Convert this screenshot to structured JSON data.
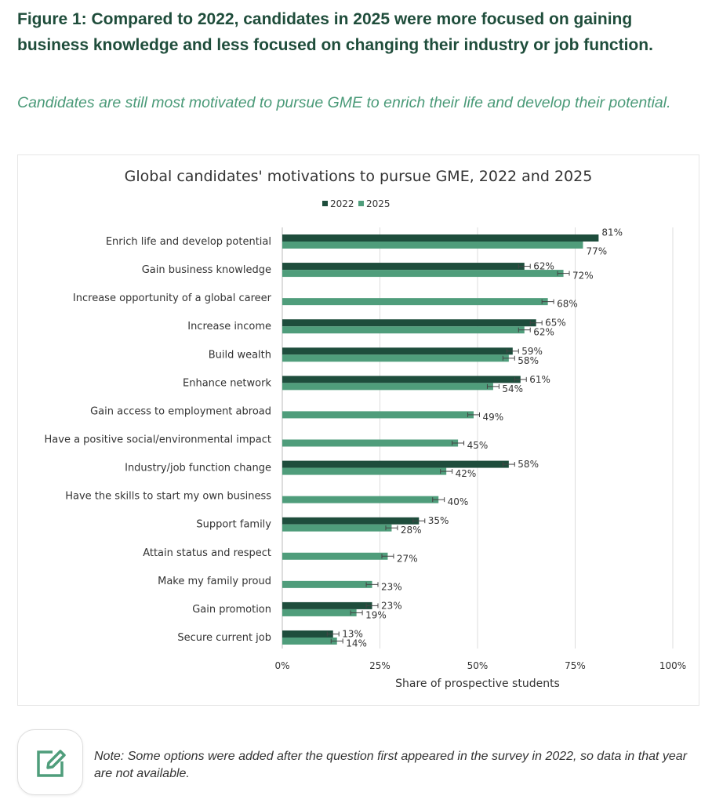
{
  "headline": "Figure 1: Compared to 2022, candidates in 2025 were more focused on gaining business knowledge and less focused on changing their industry or job function.",
  "subheadline": "Candidates are still most motivated to pursue GME to enrich their life and develop their potential.",
  "note": "Note: Some options were added after the question first appeared in the survey in 2022, so data in that year are not available.",
  "note_icon": "edit-note-icon",
  "colors": {
    "series_2022": "#1e4d3c",
    "series_2025": "#4f9d7b",
    "text": "#333333",
    "grid": "#dddddd"
  },
  "chart_data": {
    "type": "bar",
    "orientation": "horizontal",
    "title": "Global candidates' motivations to pursue GME, 2022 and 2025",
    "xlabel": "Share of prospective students",
    "ylabel": "",
    "xlim": [
      0,
      100
    ],
    "xticks": [
      "0%",
      "25%",
      "50%",
      "75%",
      "100%"
    ],
    "grid": true,
    "legend_position": "top",
    "error_bars": true,
    "categories": [
      "Enrich life and develop potential",
      "Gain business knowledge",
      "Increase opportunity of a global career",
      "Increase income",
      "Build wealth",
      "Enhance network",
      "Gain access to employment abroad",
      "Have a positive social/environmental impact",
      "Industry/job function change",
      "Have the skills to start my own business",
      "Support family",
      "Attain status and respect",
      "Make my family proud",
      "Gain promotion",
      "Secure current job"
    ],
    "series": [
      {
        "name": "2022",
        "values": [
          81,
          62,
          null,
          65,
          59,
          61,
          null,
          null,
          58,
          null,
          35,
          null,
          null,
          23,
          13
        ],
        "labels": [
          "81%",
          "62%",
          "",
          "65%",
          "59%",
          "61%",
          "",
          "",
          "58%",
          "",
          "35%",
          "",
          "",
          "23%",
          "13%"
        ]
      },
      {
        "name": "2025",
        "values": [
          77,
          72,
          68,
          62,
          58,
          54,
          49,
          45,
          42,
          40,
          28,
          27,
          23,
          19,
          14
        ],
        "labels": [
          "77%",
          "72%",
          "68%",
          "62%",
          "58%",
          "54%",
          "49%",
          "45%",
          "42%",
          "40%",
          "28%",
          "27%",
          "23%",
          "19%",
          "14%"
        ]
      }
    ]
  }
}
